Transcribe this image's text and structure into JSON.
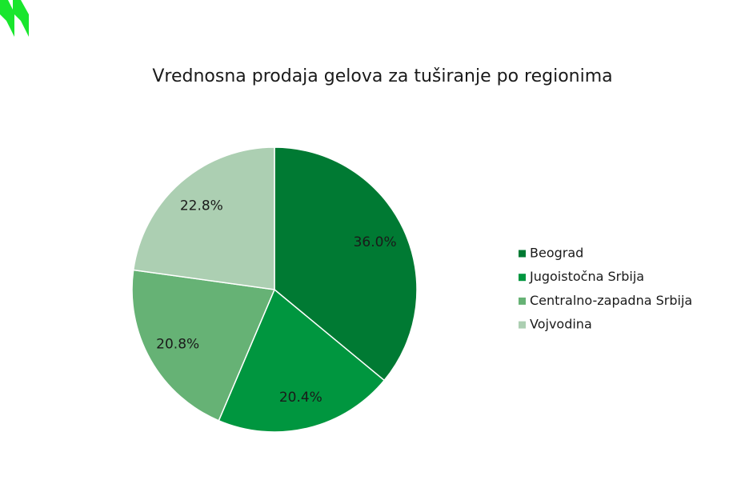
{
  "chart_data": {
    "type": "pie",
    "title": "Vrednosna prodaja gelova za tuširanje po regionima",
    "categories": [
      "Beograd",
      "Jugoistočna Srbija",
      "Centralno-zapadna Srbija",
      "Vojvodina"
    ],
    "values": [
      36.0,
      20.4,
      20.8,
      22.8
    ],
    "value_labels": [
      "36.0%",
      "20.4%",
      "20.8%",
      "22.8%"
    ],
    "colors": [
      "#007a33",
      "#00963f",
      "#66b275",
      "#accfb2"
    ],
    "legend": "right"
  }
}
